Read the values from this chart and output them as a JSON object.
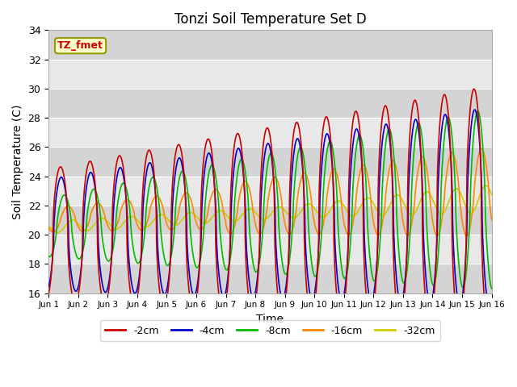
{
  "title": "Tonzi Soil Temperature Set D",
  "xlabel": "Time",
  "ylabel": "Soil Temperature (C)",
  "ylim": [
    16,
    34
  ],
  "xlim": [
    0,
    15
  ],
  "xtick_labels": [
    "Jun 1",
    "Jun 2",
    "Jun 3",
    "Jun 4",
    "Jun 5",
    "Jun 6",
    "Jun 7",
    "Jun 8",
    "Jun 9",
    "Jun 10",
    "Jun 11",
    "Jun 12",
    "Jun 13",
    "Jun 14",
    "Jun 15",
    "Jun 16"
  ],
  "xtick_positions": [
    0,
    1,
    2,
    3,
    4,
    5,
    6,
    7,
    8,
    9,
    10,
    11,
    12,
    13,
    14,
    15
  ],
  "ytick_positions": [
    16,
    18,
    20,
    22,
    24,
    26,
    28,
    30,
    32,
    34
  ],
  "series": {
    "-2cm": {
      "color": "#cc0000",
      "linewidth": 1.2
    },
    "-4cm": {
      "color": "#0000cc",
      "linewidth": 1.2
    },
    "-8cm": {
      "color": "#00bb00",
      "linewidth": 1.2
    },
    "-16cm": {
      "color": "#ff8800",
      "linewidth": 1.2
    },
    "-32cm": {
      "color": "#cccc00",
      "linewidth": 1.2
    }
  },
  "annotation_text": "TZ_fmet",
  "legend_labels": [
    "-2cm",
    "-4cm",
    "-8cm",
    "-16cm",
    "-32cm"
  ],
  "legend_colors": [
    "#cc0000",
    "#0000cc",
    "#00bb00",
    "#ff8800",
    "#cccc00"
  ],
  "alternating_bands": [
    "#dcdcdc",
    "#e8e8e8"
  ],
  "grid_color": "#ffffff"
}
